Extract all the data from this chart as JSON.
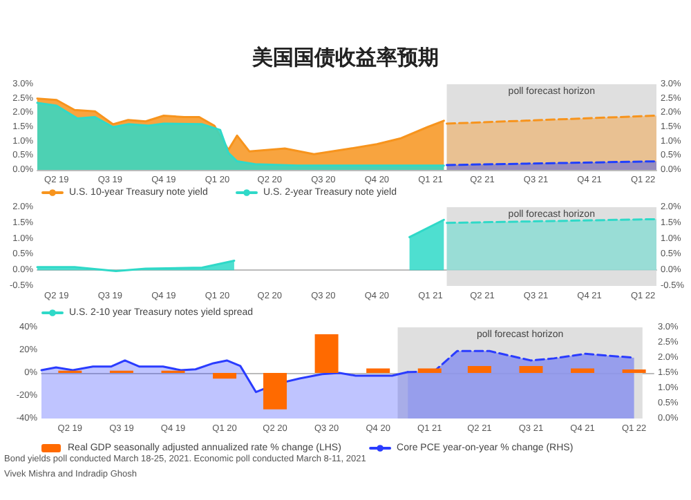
{
  "chart_data": [
    {
      "type": "area",
      "title": "美国国债收益率预期",
      "marker": "none",
      "legend": "bottom",
      "xlim": [
        "2019-04-12",
        "2022-03-10"
      ],
      "xticks": [
        {
          "value": "2019-05-15",
          "label": "Q2 19"
        },
        {
          "value": "2019-08-15",
          "label": "Q3 19"
        },
        {
          "value": "2019-11-15",
          "label": "Q4 19"
        },
        {
          "value": "2020-02-15",
          "label": "Q1 20"
        },
        {
          "value": "2020-05-15",
          "label": "Q2 20"
        },
        {
          "value": "2020-08-15",
          "label": "Q3 20"
        },
        {
          "value": "2020-11-15",
          "label": "Q4 20"
        },
        {
          "value": "2021-02-15",
          "label": "Q1 21"
        },
        {
          "value": "2021-05-15",
          "label": "Q2 21"
        },
        {
          "value": "2021-08-15",
          "label": "Q3 21"
        },
        {
          "value": "2021-11-15",
          "label": "Q4 21"
        },
        {
          "value": "2022-02-15",
          "label": "Q1 22"
        }
      ],
      "ylim": [
        0,
        3
      ],
      "yticks": [
        {
          "value": 0,
          "label": "0.0%"
        },
        {
          "value": 0.5,
          "label": "0.5%"
        },
        {
          "value": 1,
          "label": "1.0%"
        },
        {
          "value": 1.5,
          "label": "1.5%"
        },
        {
          "value": 2,
          "label": "2.0%"
        },
        {
          "value": 2.5,
          "label": "2.5%"
        },
        {
          "value": 3,
          "label": "3.0%"
        }
      ],
      "y2lim": [
        0,
        3
      ],
      "y2ticks": [
        {
          "value": 0,
          "label": "0.0%"
        },
        {
          "value": 0.5,
          "label": "0.5%"
        },
        {
          "value": 1,
          "label": "1.0%"
        },
        {
          "value": 1.5,
          "label": "1.5%"
        },
        {
          "value": 2,
          "label": "2.0%"
        },
        {
          "value": 2.5,
          "label": "2.5%"
        },
        {
          "value": 3,
          "label": "3.0%"
        }
      ],
      "bands": [
        {
          "axis": "x",
          "from": "2021-03-15",
          "to": "2022-03-10",
          "label": "poll forecast horizon",
          "color": "#d9d9d9"
        }
      ],
      "series": [
        {
          "name": "U.S. 10-year Treasury note yield",
          "color": "#f7941d",
          "x": [
            "2019-04-12",
            "2019-05-15",
            "2019-06-15",
            "2019-07-20",
            "2019-08-20",
            "2019-09-15",
            "2019-10-15",
            "2019-11-15",
            "2019-12-20",
            "2020-01-15",
            "2020-02-10",
            "2020-03-05",
            "2020-03-20",
            "2020-04-10",
            "2020-06-10",
            "2020-07-30",
            "2020-10-01",
            "2020-11-15",
            "2020-12-25",
            "2021-02-10",
            "2021-03-10"
          ],
          "values": [
            2.5,
            2.45,
            2.1,
            2.05,
            1.6,
            1.75,
            1.7,
            1.9,
            1.85,
            1.85,
            1.55,
            0.7,
            1.2,
            0.65,
            0.75,
            0.55,
            0.75,
            0.9,
            1.1,
            1.5,
            1.72
          ]
        },
        {
          "color": "#f7941d",
          "line_style": "dashed",
          "x": [
            "2021-03-15",
            "2022-03-10"
          ],
          "values": [
            1.62,
            1.9
          ]
        },
        {
          "name": "U.S. 2-year Treasury note yield",
          "color": "#2fd9c8",
          "x": [
            "2019-04-12",
            "2019-05-15",
            "2019-06-20",
            "2019-07-20",
            "2019-08-20",
            "2019-09-15",
            "2019-10-20",
            "2019-11-15",
            "2020-01-20",
            "2020-02-20",
            "2020-03-05",
            "2020-03-20",
            "2020-04-20",
            "2020-07-01",
            "2021-03-10"
          ],
          "values": [
            2.35,
            2.25,
            1.8,
            1.85,
            1.5,
            1.6,
            1.55,
            1.62,
            1.6,
            1.4,
            0.6,
            0.3,
            0.2,
            0.15,
            0.15
          ]
        },
        {
          "color": "#1f3fff",
          "line_style": "dashed",
          "x": [
            "2021-03-15",
            "2022-03-10"
          ],
          "values": [
            0.17,
            0.3
          ]
        }
      ]
    },
    {
      "type": "area",
      "marker": "none",
      "legend": "bottom",
      "xlim": [
        "2019-04-12",
        "2022-03-10"
      ],
      "xticks": [
        {
          "value": "2019-05-15",
          "label": "Q2 19"
        },
        {
          "value": "2019-08-15",
          "label": "Q3 19"
        },
        {
          "value": "2019-11-15",
          "label": "Q4 19"
        },
        {
          "value": "2020-02-15",
          "label": "Q1 20"
        },
        {
          "value": "2020-05-15",
          "label": "Q2 20"
        },
        {
          "value": "2020-08-15",
          "label": "Q3 20"
        },
        {
          "value": "2020-11-15",
          "label": "Q4 20"
        },
        {
          "value": "2021-02-15",
          "label": "Q1 21"
        },
        {
          "value": "2021-05-15",
          "label": "Q2 21"
        },
        {
          "value": "2021-08-15",
          "label": "Q3 21"
        },
        {
          "value": "2021-11-15",
          "label": "Q4 21"
        },
        {
          "value": "2022-02-15",
          "label": "Q1 22"
        }
      ],
      "ylim": [
        -0.5,
        2
      ],
      "yticks": [
        {
          "value": -0.5,
          "label": "-0.5%"
        },
        {
          "value": 0,
          "label": "0.0%"
        },
        {
          "value": 0.5,
          "label": "0.5%"
        },
        {
          "value": 1,
          "label": "1.0%"
        },
        {
          "value": 1.5,
          "label": "1.5%"
        },
        {
          "value": 2,
          "label": "2.0%"
        }
      ],
      "y2lim": [
        -0.5,
        2
      ],
      "y2ticks": [
        {
          "value": -0.5,
          "label": "-0.5%"
        },
        {
          "value": 0,
          "label": "0.0%"
        },
        {
          "value": 0.5,
          "label": "0.5%"
        },
        {
          "value": 1,
          "label": "1.0%"
        },
        {
          "value": 1.5,
          "label": "1.5%"
        },
        {
          "value": 2,
          "label": "2.0%"
        }
      ],
      "bands": [
        {
          "axis": "x",
          "from": "2021-03-15",
          "to": "2022-03-10",
          "label": "poll forecast horizon",
          "color": "#d9d9d9"
        }
      ],
      "series": [
        {
          "name": "U.S. 2-10 year Treasury notes yield spread",
          "color": "#2fd9c8",
          "x": [
            "2019-04-12",
            "2019-06-15",
            "2019-08-25",
            "2019-10-15",
            "2020-01-20",
            "2020-03-15",
            "2020-04-01",
            "2021-01-10",
            "2021-03-10"
          ],
          "values": [
            0.1,
            0.1,
            -0.03,
            0.05,
            0.08,
            0.3,
            null,
            1.05,
            1.6
          ]
        },
        {
          "color": "#2fd9c8",
          "line_style": "dashed",
          "x": [
            "2021-03-15",
            "2022-03-10"
          ],
          "values": [
            1.5,
            1.62
          ]
        }
      ]
    },
    {
      "type": "bar",
      "marker": "none",
      "legend": "bottom",
      "xlim": [
        "2019-03-25",
        "2022-03-22"
      ],
      "xticks": [
        {
          "value": "2019-05-15",
          "label": "Q2 19"
        },
        {
          "value": "2019-08-15",
          "label": "Q3 19"
        },
        {
          "value": "2019-11-15",
          "label": "Q4 19"
        },
        {
          "value": "2020-02-15",
          "label": "Q1 20"
        },
        {
          "value": "2020-05-15",
          "label": "Q2 20"
        },
        {
          "value": "2020-08-15",
          "label": "Q3 20"
        },
        {
          "value": "2020-11-15",
          "label": "Q4 20"
        },
        {
          "value": "2021-02-15",
          "label": "Q1 21"
        },
        {
          "value": "2021-05-15",
          "label": "Q2 21"
        },
        {
          "value": "2021-08-15",
          "label": "Q3 21"
        },
        {
          "value": "2021-11-15",
          "label": "Q4 21"
        },
        {
          "value": "2022-02-15",
          "label": "Q1 22"
        }
      ],
      "ylim": [
        -40,
        40
      ],
      "yticks": [
        {
          "value": -40,
          "label": "-40%"
        },
        {
          "value": -20,
          "label": "-20%"
        },
        {
          "value": 0,
          "label": "0%"
        },
        {
          "value": 20,
          "label": "20%"
        },
        {
          "value": 40,
          "label": "40%"
        }
      ],
      "y2lim": [
        0,
        3
      ],
      "y2ticks": [
        {
          "value": 0,
          "label": "0.0%"
        },
        {
          "value": 0.5,
          "label": "0.5%"
        },
        {
          "value": 1,
          "label": "1.0%"
        },
        {
          "value": 1.5,
          "label": "1.5%"
        },
        {
          "value": 2,
          "label": "2.0%"
        },
        {
          "value": 2.5,
          "label": "2.5%"
        },
        {
          "value": 3,
          "label": "3.0%"
        }
      ],
      "bands": [
        {
          "axis": "x",
          "from": "2020-12-20",
          "to": "2022-03-02",
          "label": "poll forecast horizon",
          "color": "#d9d9d9"
        }
      ],
      "annotations": [
        "Bond yields poll conducted March 18-25, 2021. Economic poll conducted March 8-11, 2021",
        "Vivek Mishra and Indradip Ghosh"
      ],
      "series": [
        {
          "name": "Real GDP seasonally adjusted annualized rate % change (LHS)",
          "color": "#ff6a00",
          "x": [
            "2019-05-15",
            "2019-08-15",
            "2019-11-15",
            "2020-02-15",
            "2020-05-15",
            "2020-08-15",
            "2020-11-15",
            "2021-02-15",
            "2021-05-15",
            "2021-08-15",
            "2021-11-15",
            "2022-02-15"
          ],
          "values": [
            2,
            2,
            2,
            -5,
            -32,
            34,
            4,
            4,
            6,
            6,
            4,
            3
          ]
        },
        {
          "name": "Core PCE year-on-year % change (RHS)",
          "type": "area",
          "axis": "y2",
          "color": "#2a3cff",
          "x": [
            "2019-03-25",
            "2019-04-20",
            "2019-05-20",
            "2019-06-25",
            "2019-07-27",
            "2019-08-21",
            "2019-09-16",
            "2019-10-28",
            "2019-11-29",
            "2019-12-25",
            "2020-01-26",
            "2020-02-19",
            "2020-03-14",
            "2020-04-11",
            "2020-05-18",
            "2020-06-28",
            "2020-08-07",
            "2020-09-07",
            "2020-10-06",
            "2020-12-10",
            "2021-01-07"
          ],
          "values": [
            1.59,
            1.68,
            1.59,
            1.71,
            1.71,
            1.91,
            1.71,
            1.71,
            1.59,
            1.62,
            1.82,
            1.91,
            1.73,
            0.87,
            1.14,
            1.32,
            1.46,
            1.5,
            1.41,
            1.41,
            1.53
          ]
        },
        {
          "type": "area",
          "axis": "y2",
          "color": "#2a3cff",
          "line_style": "dashed",
          "x": [
            "2021-01-07",
            "2021-02-23",
            "2021-04-05",
            "2021-06-02",
            "2021-08-15",
            "2021-09-25",
            "2021-11-20",
            "2022-02-15"
          ],
          "values": [
            1.53,
            1.55,
            2.22,
            2.22,
            1.91,
            1.98,
            2.13,
            2.0
          ]
        }
      ]
    }
  ]
}
